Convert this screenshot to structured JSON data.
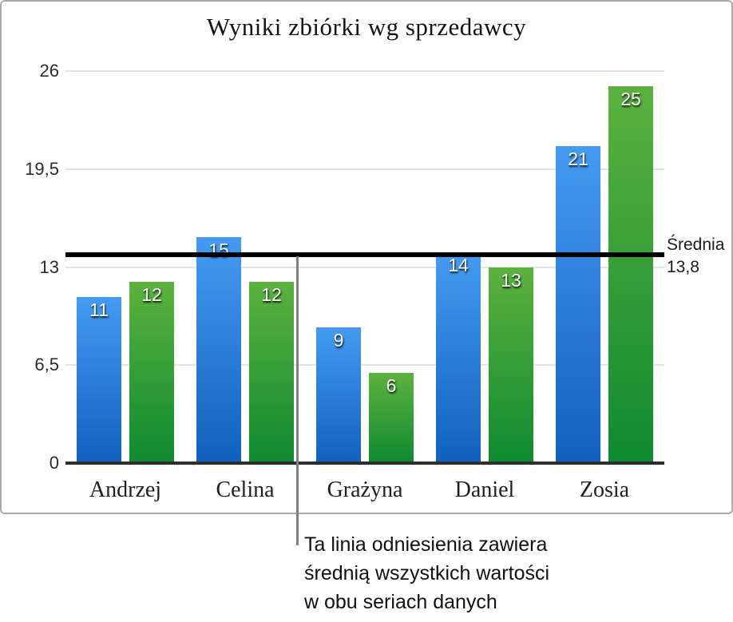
{
  "chart_data": {
    "type": "bar",
    "title": "Wyniki zbiórki wg sprzedawcy",
    "categories": [
      "Andrzej",
      "Celina",
      "Grażyna",
      "Daniel",
      "Zosia"
    ],
    "series": [
      {
        "name": "series-blue",
        "color_top": "#459bf1",
        "color_bottom": "#1160bf",
        "values": [
          11,
          15,
          9,
          14,
          21
        ]
      },
      {
        "name": "series-green",
        "color_top": "#5cb23e",
        "color_bottom": "#0e8a30",
        "values": [
          12,
          12,
          6,
          13,
          25
        ]
      }
    ],
    "xlabel": "",
    "ylabel": "",
    "ylim": [
      0,
      26
    ],
    "yticks": [
      {
        "value": 0,
        "label": "0"
      },
      {
        "value": 6.5,
        "label": "6,5"
      },
      {
        "value": 13,
        "label": "13"
      },
      {
        "value": 19.5,
        "label": "19,5"
      },
      {
        "value": 26,
        "label": "26"
      }
    ],
    "grid": true,
    "legend": "none",
    "reference_line": {
      "value": 13.8,
      "label": "Średnia\n13,8",
      "color": "#000000"
    }
  },
  "callout": {
    "text": "Ta linia odniesienia zawiera\nśrednią wszystkich wartości\nw obu seriach danych"
  },
  "figure": {
    "border_color": "#ababab",
    "background": "#ffffff"
  }
}
